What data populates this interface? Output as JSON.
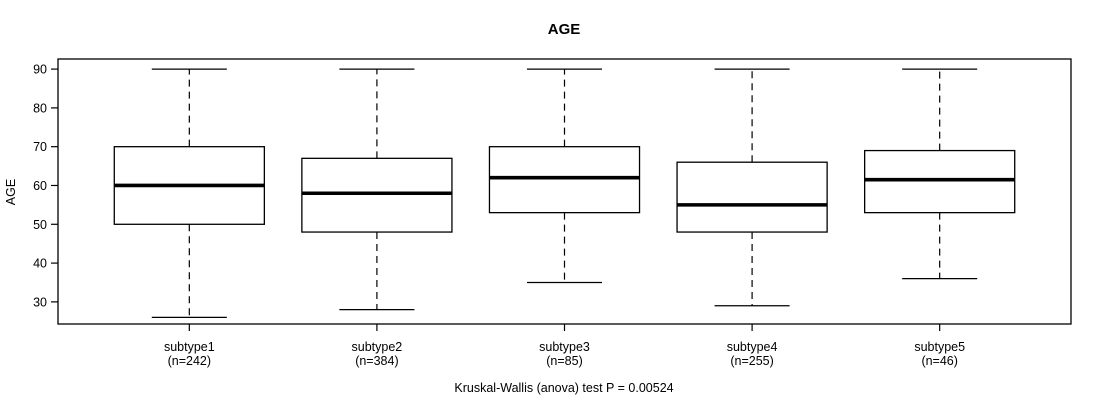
{
  "chart_data": {
    "type": "boxplot",
    "title": "AGE",
    "ylabel": "AGE",
    "xlabel": "",
    "caption": "Kruskal-Wallis (anova) test P = 0.00524",
    "yticks": [
      30,
      40,
      50,
      60,
      70,
      80,
      90
    ],
    "ylim": [
      24.3,
      92.6
    ],
    "grid": false,
    "legend": "none",
    "colors": {
      "line": "#000000",
      "median": "#000000",
      "box_fill": "#ffffff",
      "background": "#ffffff",
      "text": "#000000"
    },
    "groups": [
      {
        "label": "subtype1",
        "n_label": "(n=242)",
        "n": 242,
        "whisker_low": 26,
        "q1": 50,
        "median": 60,
        "q3": 70,
        "whisker_high": 90
      },
      {
        "label": "subtype2",
        "n_label": "(n=384)",
        "n": 384,
        "whisker_low": 28,
        "q1": 48,
        "median": 58,
        "q3": 67,
        "whisker_high": 90
      },
      {
        "label": "subtype3",
        "n_label": "(n=85)",
        "n": 85,
        "whisker_low": 35,
        "q1": 53,
        "median": 62,
        "q3": 70,
        "whisker_high": 90
      },
      {
        "label": "subtype4",
        "n_label": "(n=255)",
        "n": 255,
        "whisker_low": 29,
        "q1": 48,
        "median": 55,
        "q3": 66,
        "whisker_high": 90
      },
      {
        "label": "subtype5",
        "n_label": "(n=46)",
        "n": 46,
        "whisker_low": 36,
        "q1": 53,
        "median": 61.5,
        "q3": 69,
        "whisker_high": 90
      }
    ]
  }
}
